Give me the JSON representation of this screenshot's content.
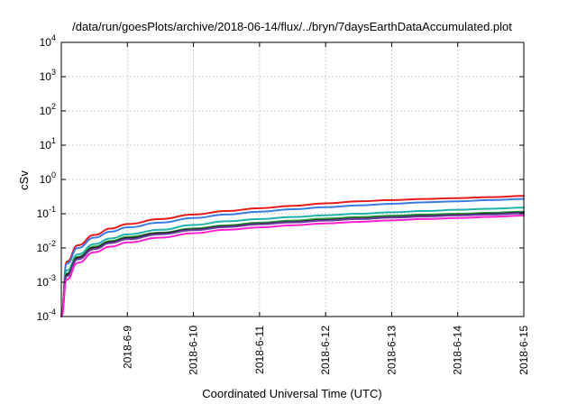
{
  "chart_data": {
    "type": "line",
    "title": "/data/run/goesPlots/archive/2018-06-14/flux/../bryn/7daysEarthDataAccumulated.plot",
    "xlabel": "Coordinated Universal Time (UTC)",
    "ylabel": "cSv",
    "yscale": "log",
    "ylim": [
      0.0001,
      10000
    ],
    "y_ticks": [
      {
        "value": 0.0001,
        "base": "10",
        "exp": "-4"
      },
      {
        "value": 0.001,
        "base": "10",
        "exp": "-3"
      },
      {
        "value": 0.01,
        "base": "10",
        "exp": "-2"
      },
      {
        "value": 0.1,
        "base": "10",
        "exp": "-1"
      },
      {
        "value": 1,
        "base": "10",
        "exp": "0"
      },
      {
        "value": 10,
        "base": "10",
        "exp": "1"
      },
      {
        "value": 100,
        "base": "10",
        "exp": "2"
      },
      {
        "value": 1000,
        "base": "10",
        "exp": "3"
      },
      {
        "value": 10000,
        "base": "10",
        "exp": "4"
      }
    ],
    "xlim": [
      "2018-06-08",
      "2018-06-15"
    ],
    "x_ticks": [
      "2018-6-9",
      "2018-6-10",
      "2018-6-11",
      "2018-6-12",
      "2018-6-13",
      "2018-6-14",
      "2018-6-15"
    ],
    "grid": true,
    "x": [
      "2018-06-08 00:00",
      "2018-06-08 02:00",
      "2018-06-08 06:00",
      "2018-06-08 12:00",
      "2018-06-08 18:00",
      "2018-06-09 00:00",
      "2018-06-09 12:00",
      "2018-06-10 00:00",
      "2018-06-10 12:00",
      "2018-06-11 00:00",
      "2018-06-11 12:00",
      "2018-06-12 00:00",
      "2018-06-12 12:00",
      "2018-06-13 00:00",
      "2018-06-13 12:00",
      "2018-06-14 00:00",
      "2018-06-14 12:00",
      "2018-06-15 00:00"
    ],
    "series": [
      {
        "color": "#e41a1c",
        "values": [
          0.00012,
          0.004,
          0.012,
          0.024,
          0.037,
          0.05,
          0.07,
          0.095,
          0.12,
          0.145,
          0.17,
          0.2,
          0.23,
          0.25,
          0.27,
          0.285,
          0.305,
          0.33
        ]
      },
      {
        "color": "#3a7be0",
        "values": [
          0.0001,
          0.0035,
          0.01,
          0.02,
          0.03,
          0.04,
          0.055,
          0.075,
          0.095,
          0.115,
          0.135,
          0.155,
          0.175,
          0.195,
          0.215,
          0.23,
          0.25,
          0.27
        ]
      },
      {
        "color": "#20b2aa",
        "values": [
          0.0001,
          0.0022,
          0.0065,
          0.013,
          0.019,
          0.025,
          0.034,
          0.047,
          0.06,
          0.07,
          0.08,
          0.09,
          0.1,
          0.11,
          0.12,
          0.13,
          0.14,
          0.15
        ]
      },
      {
        "color": "#2ea043",
        "values": [
          0.0001,
          0.0018,
          0.0055,
          0.011,
          0.016,
          0.021,
          0.028,
          0.037,
          0.046,
          0.055,
          0.063,
          0.072,
          0.08,
          0.088,
          0.095,
          0.1,
          0.107,
          0.115
        ]
      },
      {
        "color": "#a05a2c",
        "values": [
          0.0001,
          0.0016,
          0.005,
          0.0098,
          0.0145,
          0.019,
          0.026,
          0.034,
          0.042,
          0.05,
          0.057,
          0.065,
          0.072,
          0.079,
          0.086,
          0.092,
          0.098,
          0.106
        ]
      },
      {
        "color": "#222222",
        "values": [
          0.0001,
          0.0017,
          0.0052,
          0.0102,
          0.015,
          0.0195,
          0.027,
          0.035,
          0.043,
          0.051,
          0.058,
          0.066,
          0.073,
          0.08,
          0.087,
          0.093,
          0.1,
          0.108
        ]
      },
      {
        "color": "#6a3ea1",
        "values": [
          0.0001,
          0.0015,
          0.0047,
          0.0093,
          0.014,
          0.018,
          0.025,
          0.033,
          0.041,
          0.049,
          0.056,
          0.063,
          0.07,
          0.077,
          0.083,
          0.089,
          0.095,
          0.102
        ]
      },
      {
        "color": "#ff1fce",
        "values": [
          0.0001,
          0.0012,
          0.0037,
          0.0075,
          0.011,
          0.0145,
          0.02,
          0.027,
          0.034,
          0.04,
          0.046,
          0.052,
          0.058,
          0.064,
          0.07,
          0.075,
          0.081,
          0.088
        ]
      }
    ]
  }
}
